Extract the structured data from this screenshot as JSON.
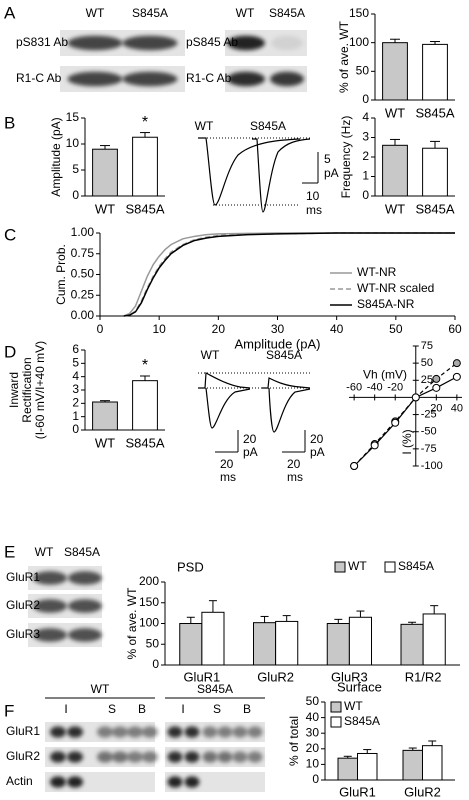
{
  "panels": [
    "A",
    "B",
    "C",
    "D",
    "E",
    "F"
  ],
  "blots_a": {
    "headers": [
      "WT",
      "S845A"
    ],
    "left_rows": [
      "pS831 Ab",
      "R1-C Ab"
    ],
    "right_rows": [
      "pS845 Ab",
      "R1-C Ab"
    ]
  },
  "traces_b": {
    "labels": [
      "WT",
      "S845A"
    ],
    "scale_y": [
      "5",
      "pA"
    ],
    "scale_x": [
      "10",
      "ms"
    ]
  },
  "traces_d": {
    "labels": [
      "WT",
      "S845A"
    ],
    "scale_y": [
      "20",
      "pA"
    ],
    "scale_x": [
      "20",
      "ms"
    ]
  },
  "blots_e": {
    "headers": [
      "WT",
      "S845A"
    ],
    "rows": [
      "GluR1",
      "GluR2",
      "GluR3"
    ]
  },
  "blots_f": {
    "groups": [
      "WT",
      "S845A"
    ],
    "lanes": [
      "I",
      "S",
      "B"
    ],
    "rows": [
      "GluR1",
      "GluR2",
      "Actin"
    ]
  },
  "chart_data": [
    {
      "type": "bar",
      "y_label": "% of ave. WT",
      "categories": [
        "WT",
        "S845A"
      ],
      "values": [
        100,
        97
      ],
      "errors": [
        6,
        5
      ],
      "colors": [
        "#c8c8c8",
        "#ffffff"
      ],
      "ylim": [
        0,
        150
      ],
      "yticks": [
        0,
        50,
        100,
        150
      ]
    },
    {
      "type": "bar",
      "y_label": "Amplitude (pA)",
      "categories": [
        "WT",
        "S845A"
      ],
      "values": [
        9,
        11.3
      ],
      "errors": [
        0.7,
        0.9
      ],
      "colors": [
        "#c8c8c8",
        "#ffffff"
      ],
      "ylim": [
        0,
        15
      ],
      "yticks": [
        0,
        5,
        10,
        15
      ],
      "annotation": "*"
    },
    {
      "type": "bar",
      "y_label": "Frequency (Hz)",
      "categories": [
        "WT",
        "S845A"
      ],
      "values": [
        2.6,
        2.45
      ],
      "errors": [
        0.3,
        0.35
      ],
      "colors": [
        "#c8c8c8",
        "#ffffff"
      ],
      "ylim": [
        0,
        4
      ],
      "yticks": [
        0,
        1,
        2,
        3,
        4
      ]
    },
    {
      "type": "line",
      "x_label": "Amplitude (pA)",
      "y_label": "Cum. Prob.",
      "x": [
        4,
        5,
        6,
        7,
        8,
        9,
        10,
        11,
        12,
        14,
        16,
        18,
        20,
        25,
        30,
        40,
        60
      ],
      "series": [
        {
          "name": "WT-NR",
          "color": "#999999",
          "linestyle": "solid",
          "values": [
            0,
            0.03,
            0.12,
            0.3,
            0.48,
            0.62,
            0.72,
            0.8,
            0.86,
            0.93,
            0.96,
            0.98,
            0.99,
            0.995,
            1,
            1,
            1
          ]
        },
        {
          "name": "WT-NR scaled",
          "color": "#999999",
          "linestyle": "dashed",
          "values": [
            0,
            0.01,
            0.06,
            0.18,
            0.34,
            0.48,
            0.6,
            0.69,
            0.77,
            0.86,
            0.92,
            0.95,
            0.97,
            0.985,
            0.99,
            1,
            1
          ]
        },
        {
          "name": "S845A-NR",
          "color": "#000000",
          "linestyle": "solid",
          "values": [
            0,
            0.01,
            0.05,
            0.16,
            0.32,
            0.46,
            0.58,
            0.67,
            0.75,
            0.85,
            0.91,
            0.94,
            0.96,
            0.98,
            0.99,
            1,
            1
          ]
        }
      ],
      "xlim": [
        0,
        60
      ],
      "xticks": [
        0,
        10,
        20,
        30,
        40,
        50,
        60
      ],
      "ylim": [
        0,
        1
      ],
      "yticks": [
        {
          "value": 0,
          "label": "0.00"
        },
        {
          "value": 0.25,
          "label": "0.25"
        },
        {
          "value": 0.5,
          "label": "0.50"
        },
        {
          "value": 0.75,
          "label": "0.75"
        },
        {
          "value": 1,
          "label": "1.00"
        }
      ],
      "legend": "right"
    },
    {
      "type": "bar",
      "y_label": [
        "Inward",
        "Rectification",
        "(I-60 mV/I+40 mV)"
      ],
      "categories": [
        "WT",
        "S845A"
      ],
      "values": [
        2.1,
        3.7
      ],
      "errors": [
        0.1,
        0.35
      ],
      "colors": [
        "#c8c8c8",
        "#ffffff"
      ],
      "ylim": [
        0,
        6
      ],
      "yticks": [
        0,
        1,
        2,
        3,
        4,
        5,
        6
      ],
      "annotation": "*"
    },
    {
      "type": "iv",
      "x_label": "Vh (mV)",
      "y_label": "I (%)",
      "x": [
        -60,
        -40,
        -20,
        0,
        20,
        40
      ],
      "series": [
        {
          "color": "#aaaaaa",
          "linestyle": "dashed",
          "values": [
            -100,
            -68,
            -35,
            0,
            27,
            50
          ]
        },
        {
          "color": "#ffffff",
          "linestyle": "solid",
          "values": [
            -100,
            -70,
            -37,
            0,
            14,
            30
          ]
        }
      ],
      "xlim": [
        -65,
        45
      ],
      "xticks": [
        -60,
        -40,
        -20,
        20,
        40
      ],
      "ylim": [
        -100,
        75
      ],
      "yticks": [
        75,
        50,
        25,
        -25,
        -50,
        -75,
        -100
      ]
    },
    {
      "type": "grouped-bar",
      "title": "PSD",
      "y_label": "% of ave. WT",
      "categories": [
        "GluR1",
        "GluR2",
        "GluR3",
        "R1/R2"
      ],
      "series": [
        {
          "name": "WT",
          "color": "#c8c8c8",
          "values": [
            100,
            102,
            100,
            98
          ],
          "errors": [
            15,
            15,
            10,
            5
          ]
        },
        {
          "name": "S845A",
          "color": "#ffffff",
          "values": [
            127,
            105,
            115,
            123
          ],
          "errors": [
            28,
            14,
            15,
            20
          ]
        }
      ],
      "ylim": [
        0,
        200
      ],
      "yticks": [
        0,
        50,
        100,
        150,
        200
      ],
      "legend": "top-right"
    },
    {
      "type": "grouped-bar",
      "title": "Surface",
      "y_label": "% of total",
      "categories": [
        "GluR1",
        "GluR2"
      ],
      "series": [
        {
          "name": "WT",
          "color": "#c8c8c8",
          "values": [
            14,
            19
          ],
          "errors": [
            1.2,
            1.5
          ]
        },
        {
          "name": "S845A",
          "color": "#ffffff",
          "values": [
            17,
            22
          ],
          "errors": [
            2.5,
            3
          ]
        }
      ],
      "ylim": [
        0,
        50
      ],
      "yticks": [
        0,
        10,
        20,
        30,
        40,
        50
      ],
      "legend": "top-left"
    }
  ]
}
